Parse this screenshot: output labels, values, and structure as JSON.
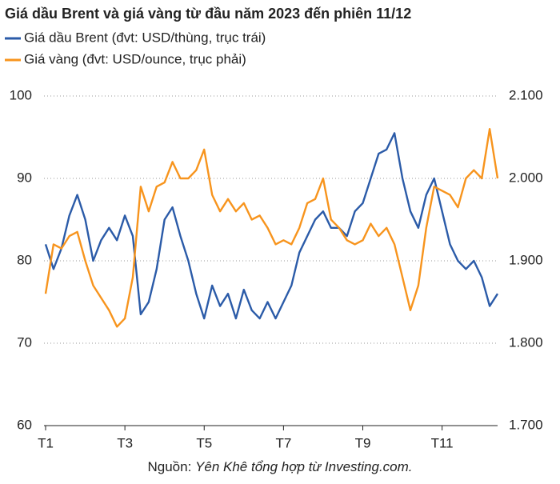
{
  "chart_data": {
    "type": "line",
    "title": "Giá dầu Brent và giá vàng từ đầu năm 2023 đến phiên 11/12",
    "source": [
      "Nguồn:",
      "Yên Khê tổng hợp từ Investing.com."
    ],
    "x": [
      1,
      1.2,
      1.4,
      1.6,
      1.8,
      2,
      2.2,
      2.4,
      2.6,
      2.8,
      3,
      3.2,
      3.4,
      3.6,
      3.8,
      4,
      4.2,
      4.4,
      4.6,
      4.8,
      5,
      5.2,
      5.4,
      5.6,
      5.8,
      6,
      6.2,
      6.4,
      6.6,
      6.8,
      7,
      7.2,
      7.4,
      7.6,
      7.8,
      8,
      8.2,
      8.4,
      8.6,
      8.8,
      9,
      9.2,
      9.4,
      9.6,
      9.8,
      10,
      10.2,
      10.4,
      10.6,
      10.8,
      11,
      11.2,
      11.4,
      11.6,
      11.8,
      12,
      12.2,
      12.4
    ],
    "xlim": [
      1,
      12.4
    ],
    "xticks": [
      {
        "value": 1,
        "label": "T1"
      },
      {
        "value": 3,
        "label": "T3"
      },
      {
        "value": 5,
        "label": "T5"
      },
      {
        "value": 7,
        "label": "T7"
      },
      {
        "value": 9,
        "label": "T9"
      },
      {
        "value": 11,
        "label": "T11"
      }
    ],
    "ylim": [
      60,
      100
    ],
    "yticks": [
      100,
      90,
      80,
      70,
      60
    ],
    "y2lim": [
      1700,
      2100
    ],
    "y2ticks": [
      {
        "value": 2100,
        "label": "2.100"
      },
      {
        "value": 2000,
        "label": "2.000"
      },
      {
        "value": 1900,
        "label": "1.900"
      },
      {
        "value": 1800,
        "label": "1.800"
      },
      {
        "value": 1700,
        "label": "1.700"
      }
    ],
    "grid": true,
    "series": [
      {
        "name": "Giá dầu Brent (đvt: USD/thùng, trục trái)",
        "color": "#2b5ba8",
        "values": [
          82,
          79,
          81.5,
          85.5,
          88,
          85,
          80,
          82.5,
          84,
          82.5,
          85.5,
          83,
          73.5,
          75,
          79,
          85,
          86.5,
          83,
          80,
          76,
          73,
          77,
          74.5,
          76,
          73,
          76.5,
          74,
          73,
          75,
          73,
          75,
          77,
          81,
          83,
          85,
          86,
          84,
          84,
          83,
          86,
          87,
          90,
          93,
          93.5,
          95.5,
          90,
          86,
          84,
          88,
          90,
          86,
          82,
          80,
          79,
          80,
          78,
          74.5,
          76
        ]
      },
      {
        "name": "Giá vàng (đvt: USD/ounce, trục phải)",
        "color": "#f7941d",
        "axis": "y2",
        "values": [
          1860,
          1920,
          1915,
          1930,
          1935,
          1900,
          1870,
          1855,
          1840,
          1820,
          1830,
          1880,
          1990,
          1960,
          1990,
          1995,
          2020,
          2000,
          2000,
          2010,
          2035,
          1980,
          1960,
          1975,
          1960,
          1970,
          1950,
          1955,
          1940,
          1920,
          1925,
          1920,
          1940,
          1970,
          1975,
          2000,
          1950,
          1940,
          1925,
          1920,
          1925,
          1945,
          1930,
          1940,
          1920,
          1880,
          1840,
          1870,
          1940,
          1990,
          1985,
          1980,
          1965,
          2000,
          2010,
          2000,
          2060,
          2000
        ]
      }
    ]
  }
}
